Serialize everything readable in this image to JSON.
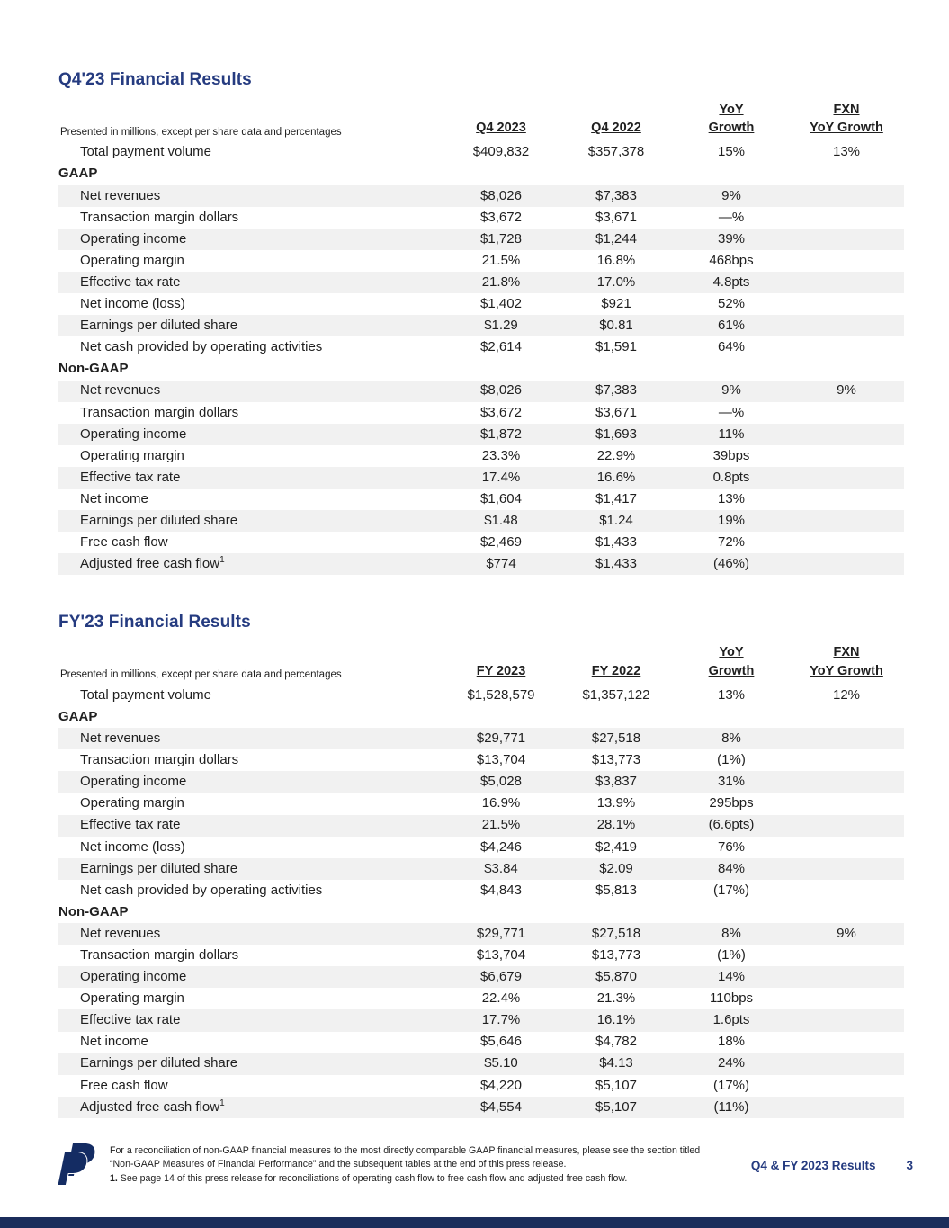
{
  "colors": {
    "heading-blue": "#253b80",
    "text": "#1f1f1f",
    "stripe": "#f1f1f1",
    "bar": "#1b2d5b",
    "logo": "#142c63"
  },
  "tables": [
    {
      "title": "Q4'23 Financial Results",
      "note": "Presented in millions, except per share data and percentages",
      "columns": [
        "Q4 2023",
        "Q4 2022",
        "YoY\nGrowth",
        "FXN\nYoY Growth"
      ],
      "rows": [
        {
          "label": "Total payment volume",
          "values": [
            "$409,832",
            "$357,378",
            "15%",
            "13%"
          ]
        },
        {
          "label": "GAAP"
        },
        {
          "label": "Net revenues",
          "values": [
            "$8,026",
            "$7,383",
            "9%",
            ""
          ]
        },
        {
          "label": "Transaction margin dollars",
          "values": [
            "$3,672",
            "$3,671",
            "—%",
            ""
          ]
        },
        {
          "label": "Operating income",
          "values": [
            "$1,728",
            "$1,244",
            "39%",
            ""
          ]
        },
        {
          "label": "Operating margin",
          "values": [
            "21.5%",
            "16.8%",
            "468bps",
            ""
          ]
        },
        {
          "label": "Effective tax rate",
          "values": [
            "21.8%",
            "17.0%",
            "4.8pts",
            ""
          ]
        },
        {
          "label": "Net income (loss)",
          "values": [
            "$1,402",
            "$921",
            "52%",
            ""
          ]
        },
        {
          "label": "Earnings per diluted share",
          "values": [
            "$1.29",
            "$0.81",
            "61%",
            ""
          ]
        },
        {
          "label": "Net cash provided by operating activities",
          "values": [
            "$2,614",
            "$1,591",
            "64%",
            ""
          ]
        },
        {
          "label": "Non-GAAP"
        },
        {
          "label": "Net revenues",
          "values": [
            "$8,026",
            "$7,383",
            "9%",
            "9%"
          ]
        },
        {
          "label": "Transaction margin dollars",
          "values": [
            "$3,672",
            "$3,671",
            "—%",
            ""
          ]
        },
        {
          "label": "Operating income",
          "values": [
            "$1,872",
            "$1,693",
            "11%",
            ""
          ]
        },
        {
          "label": "Operating margin",
          "values": [
            "23.3%",
            "22.9%",
            "39bps",
            ""
          ]
        },
        {
          "label": "Effective tax rate",
          "values": [
            "17.4%",
            "16.6%",
            "0.8pts",
            ""
          ]
        },
        {
          "label": "Net income",
          "values": [
            "$1,604",
            "$1,417",
            "13%",
            ""
          ]
        },
        {
          "label": "Earnings per diluted share",
          "values": [
            "$1.48",
            "$1.24",
            "19%",
            ""
          ]
        },
        {
          "label": "Free cash flow",
          "values": [
            "$2,469",
            "$1,433",
            "72%",
            ""
          ]
        },
        {
          "label": "Adjusted free cash flow",
          "sup": "1",
          "values": [
            "$774",
            "$1,433",
            "(46%)",
            ""
          ]
        }
      ]
    },
    {
      "title": "FY'23 Financial Results",
      "note": "Presented in millions, except per share data and percentages",
      "columns": [
        "FY 2023",
        "FY 2022",
        "YoY\nGrowth",
        "FXN\nYoY Growth"
      ],
      "rows": [
        {
          "label": "Total payment volume",
          "values": [
            "$1,528,579",
            "$1,357,122",
            "13%",
            "12%"
          ]
        },
        {
          "label": "GAAP"
        },
        {
          "label": "Net revenues",
          "values": [
            "$29,771",
            "$27,518",
            "8%",
            ""
          ]
        },
        {
          "label": "Transaction margin dollars",
          "values": [
            "$13,704",
            "$13,773",
            "(1%)",
            ""
          ]
        },
        {
          "label": "Operating income",
          "values": [
            "$5,028",
            "$3,837",
            "31%",
            ""
          ]
        },
        {
          "label": "Operating margin",
          "values": [
            "16.9%",
            "13.9%",
            "295bps",
            ""
          ]
        },
        {
          "label": "Effective tax rate",
          "values": [
            "21.5%",
            "28.1%",
            "(6.6pts)",
            ""
          ]
        },
        {
          "label": "Net income (loss)",
          "values": [
            "$4,246",
            "$2,419",
            "76%",
            ""
          ]
        },
        {
          "label": "Earnings per diluted share",
          "values": [
            "$3.84",
            "$2.09",
            "84%",
            ""
          ]
        },
        {
          "label": "Net cash provided by operating activities",
          "values": [
            "$4,843",
            "$5,813",
            "(17%)",
            ""
          ]
        },
        {
          "label": "Non-GAAP"
        },
        {
          "label": "Net revenues",
          "values": [
            "$29,771",
            "$27,518",
            "8%",
            "9%"
          ]
        },
        {
          "label": "Transaction margin dollars",
          "values": [
            "$13,704",
            "$13,773",
            "(1%)",
            ""
          ]
        },
        {
          "label": "Operating income",
          "values": [
            "$6,679",
            "$5,870",
            "14%",
            ""
          ]
        },
        {
          "label": "Operating margin",
          "values": [
            "22.4%",
            "21.3%",
            "110bps",
            ""
          ]
        },
        {
          "label": "Effective tax rate",
          "values": [
            "17.7%",
            "16.1%",
            "1.6pts",
            ""
          ]
        },
        {
          "label": "Net income",
          "values": [
            "$5,646",
            "$4,782",
            "18%",
            ""
          ]
        },
        {
          "label": "Earnings per diluted share",
          "values": [
            "$5.10",
            "$4.13",
            "24%",
            ""
          ]
        },
        {
          "label": "Free cash flow",
          "values": [
            "$4,220",
            "$5,107",
            "(17%)",
            ""
          ]
        },
        {
          "label": "Adjusted free cash flow",
          "sup": "1",
          "values": [
            "$4,554",
            "$5,107",
            "(11%)",
            ""
          ]
        }
      ]
    }
  ],
  "footer": {
    "note_line1": "For a reconciliation of non-GAAP financial measures to the most directly comparable GAAP financial measures, please see the section titled “Non-GAAP Measures of Financial Performance” and the subsequent tables at the end of this press release.",
    "footnote_marker": "1.",
    "footnote_text": " See page 14 of this press release for reconciliations of operating cash flow to free cash flow and adjusted free cash flow.",
    "report_label": "Q4 & FY 2023 Results",
    "page_number": "3"
  }
}
